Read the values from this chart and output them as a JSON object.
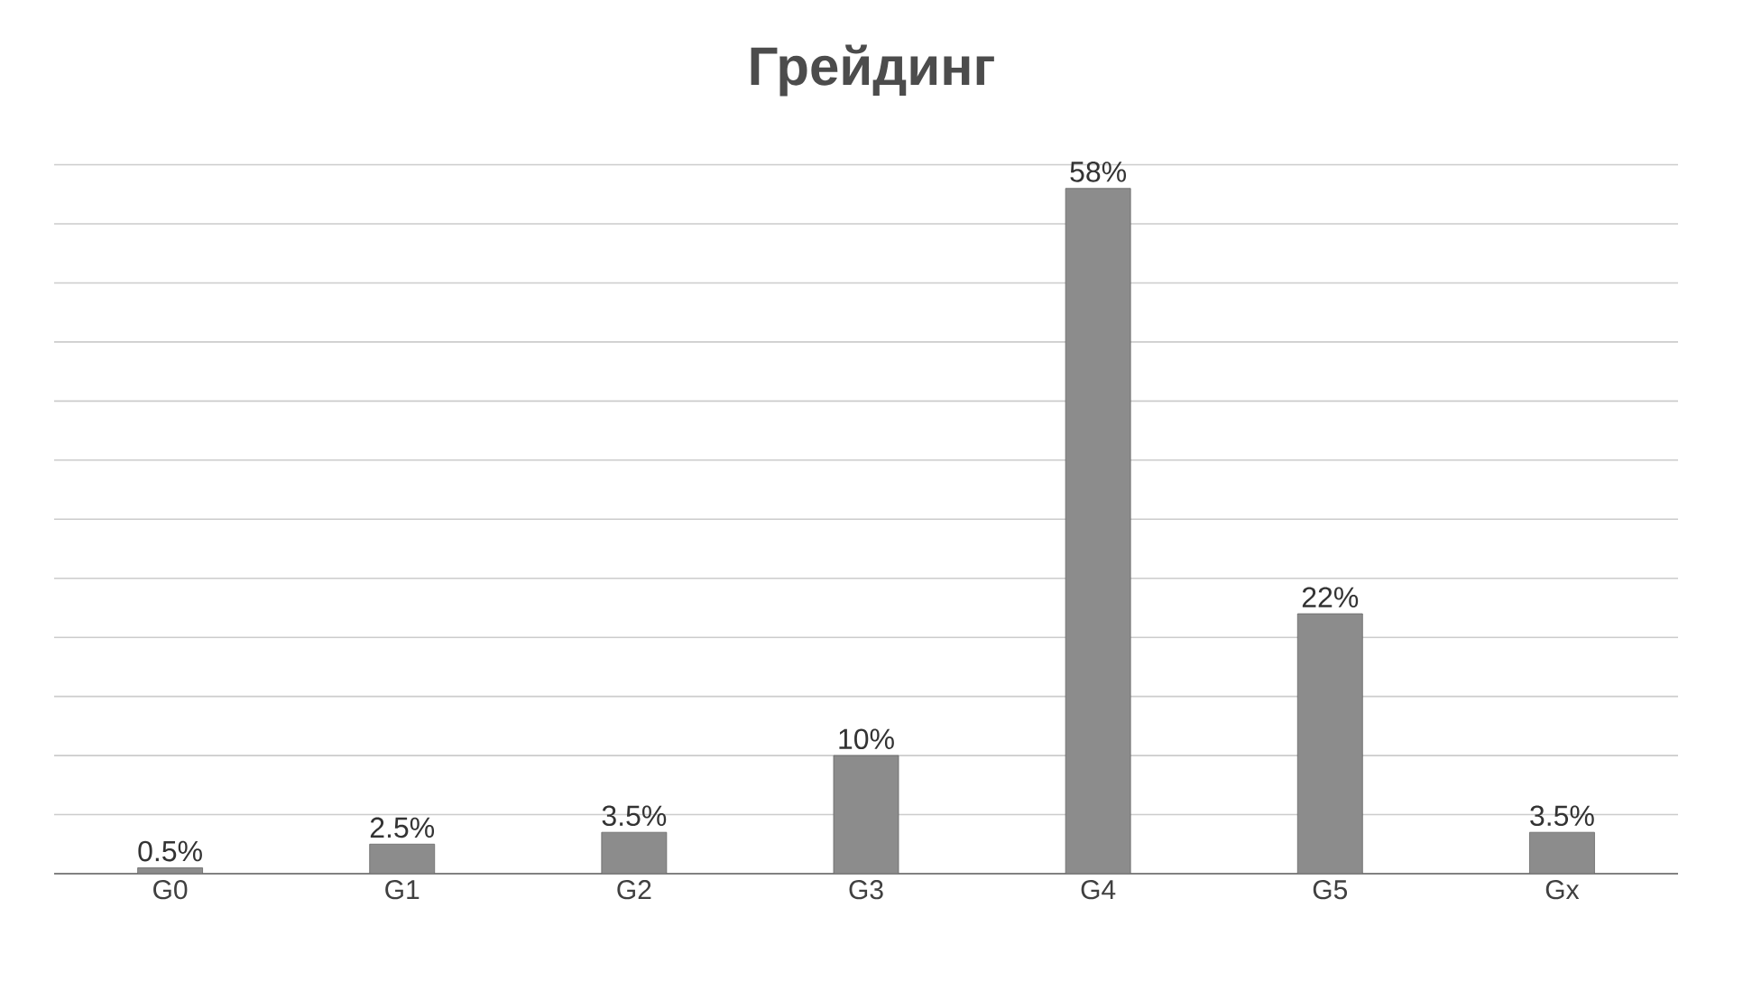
{
  "chart_data": {
    "type": "bar",
    "title": "Грейдинг",
    "categories": [
      "G0",
      "G1",
      "G2",
      "G3",
      "G4",
      "G5",
      "Gx"
    ],
    "values": [
      0.5,
      2.5,
      3.5,
      10,
      58,
      22,
      3.5
    ],
    "value_labels": [
      "0.5%",
      "2.5%",
      "3.5%",
      "10%",
      "58%",
      "22%",
      "3.5%"
    ],
    "color": "#8c8c8c",
    "grid": "y"
  }
}
